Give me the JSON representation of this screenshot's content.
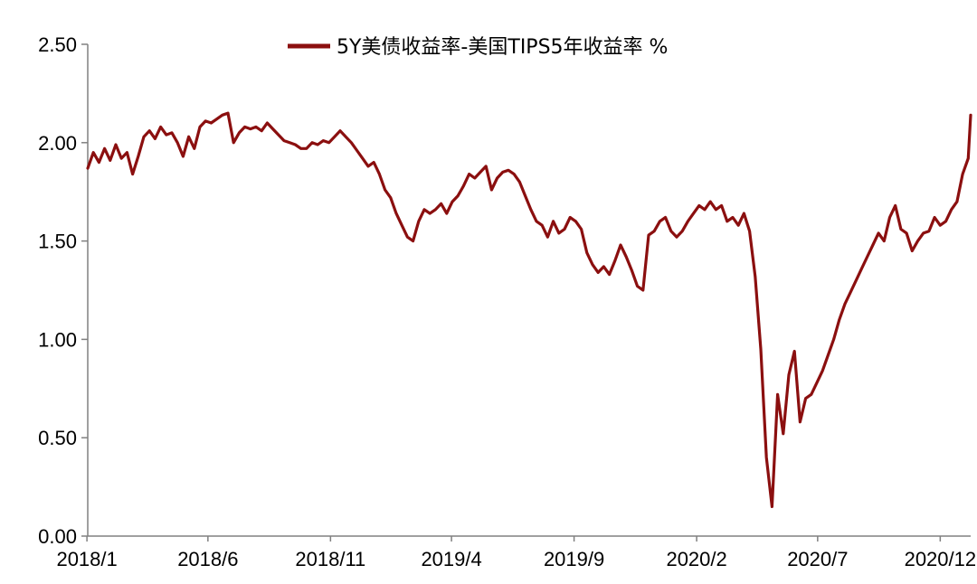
{
  "chart_data": {
    "type": "line",
    "title": "",
    "xlabel": "",
    "ylabel": "",
    "ylim": [
      0,
      2.5
    ],
    "y_ticks": [
      "0.00",
      "0.50",
      "1.00",
      "1.50",
      "2.00",
      "2.50"
    ],
    "x_range": [
      "2018-01-02",
      "2021-01-08"
    ],
    "x_ticks": [
      {
        "date": "2018-01-01",
        "label": "2018/1"
      },
      {
        "date": "2018-06-01",
        "label": "2018/6"
      },
      {
        "date": "2018-11-01",
        "label": "2018/11"
      },
      {
        "date": "2019-04-01",
        "label": "2019/4"
      },
      {
        "date": "2019-09-01",
        "label": "2019/9"
      },
      {
        "date": "2020-02-01",
        "label": "2020/2"
      },
      {
        "date": "2020-07-01",
        "label": "2020/7"
      },
      {
        "date": "2020-12-01",
        "label": "2020/12"
      }
    ],
    "grid": false,
    "legend_position": "top-center",
    "series": [
      {
        "name": "5Y美债收益率-美国TIPS5年收益率 %",
        "color": "#8B0F0F",
        "points": [
          [
            "2018-01-02",
            1.87
          ],
          [
            "2018-01-09",
            1.95
          ],
          [
            "2018-01-16",
            1.9
          ],
          [
            "2018-01-23",
            1.97
          ],
          [
            "2018-01-30",
            1.91
          ],
          [
            "2018-02-06",
            1.99
          ],
          [
            "2018-02-13",
            1.92
          ],
          [
            "2018-02-20",
            1.95
          ],
          [
            "2018-02-27",
            1.84
          ],
          [
            "2018-03-06",
            1.93
          ],
          [
            "2018-03-13",
            2.03
          ],
          [
            "2018-03-20",
            2.06
          ],
          [
            "2018-03-27",
            2.02
          ],
          [
            "2018-04-03",
            2.08
          ],
          [
            "2018-04-10",
            2.04
          ],
          [
            "2018-04-17",
            2.05
          ],
          [
            "2018-04-24",
            2.0
          ],
          [
            "2018-05-01",
            1.93
          ],
          [
            "2018-05-08",
            2.03
          ],
          [
            "2018-05-15",
            1.97
          ],
          [
            "2018-05-22",
            2.08
          ],
          [
            "2018-05-29",
            2.11
          ],
          [
            "2018-06-05",
            2.1
          ],
          [
            "2018-06-12",
            2.12
          ],
          [
            "2018-06-19",
            2.14
          ],
          [
            "2018-06-26",
            2.15
          ],
          [
            "2018-07-03",
            2.0
          ],
          [
            "2018-07-10",
            2.05
          ],
          [
            "2018-07-17",
            2.08
          ],
          [
            "2018-07-24",
            2.07
          ],
          [
            "2018-07-31",
            2.08
          ],
          [
            "2018-08-07",
            2.06
          ],
          [
            "2018-08-14",
            2.1
          ],
          [
            "2018-08-21",
            2.07
          ],
          [
            "2018-08-28",
            2.04
          ],
          [
            "2018-09-04",
            2.01
          ],
          [
            "2018-09-11",
            2.0
          ],
          [
            "2018-09-18",
            1.99
          ],
          [
            "2018-09-25",
            1.97
          ],
          [
            "2018-10-02",
            1.97
          ],
          [
            "2018-10-09",
            2.0
          ],
          [
            "2018-10-16",
            1.99
          ],
          [
            "2018-10-23",
            2.01
          ],
          [
            "2018-10-30",
            2.0
          ],
          [
            "2018-11-06",
            2.03
          ],
          [
            "2018-11-13",
            2.06
          ],
          [
            "2018-11-20",
            2.03
          ],
          [
            "2018-11-27",
            2.0
          ],
          [
            "2018-12-04",
            1.96
          ],
          [
            "2018-12-11",
            1.92
          ],
          [
            "2018-12-18",
            1.88
          ],
          [
            "2018-12-25",
            1.9
          ],
          [
            "2019-01-01",
            1.84
          ],
          [
            "2019-01-08",
            1.76
          ],
          [
            "2019-01-15",
            1.72
          ],
          [
            "2019-01-22",
            1.64
          ],
          [
            "2019-01-29",
            1.58
          ],
          [
            "2019-02-05",
            1.52
          ],
          [
            "2019-02-12",
            1.5
          ],
          [
            "2019-02-19",
            1.6
          ],
          [
            "2019-02-26",
            1.66
          ],
          [
            "2019-03-05",
            1.64
          ],
          [
            "2019-03-12",
            1.66
          ],
          [
            "2019-03-19",
            1.69
          ],
          [
            "2019-03-26",
            1.64
          ],
          [
            "2019-04-02",
            1.7
          ],
          [
            "2019-04-09",
            1.73
          ],
          [
            "2019-04-16",
            1.78
          ],
          [
            "2019-04-23",
            1.84
          ],
          [
            "2019-04-30",
            1.82
          ],
          [
            "2019-05-07",
            1.85
          ],
          [
            "2019-05-14",
            1.88
          ],
          [
            "2019-05-21",
            1.76
          ],
          [
            "2019-05-28",
            1.82
          ],
          [
            "2019-06-04",
            1.85
          ],
          [
            "2019-06-11",
            1.86
          ],
          [
            "2019-06-18",
            1.84
          ],
          [
            "2019-06-25",
            1.8
          ],
          [
            "2019-07-02",
            1.73
          ],
          [
            "2019-07-09",
            1.66
          ],
          [
            "2019-07-16",
            1.6
          ],
          [
            "2019-07-23",
            1.58
          ],
          [
            "2019-07-30",
            1.52
          ],
          [
            "2019-08-06",
            1.6
          ],
          [
            "2019-08-13",
            1.54
          ],
          [
            "2019-08-20",
            1.56
          ],
          [
            "2019-08-27",
            1.62
          ],
          [
            "2019-09-03",
            1.6
          ],
          [
            "2019-09-10",
            1.56
          ],
          [
            "2019-09-17",
            1.44
          ],
          [
            "2019-09-24",
            1.38
          ],
          [
            "2019-10-01",
            1.34
          ],
          [
            "2019-10-08",
            1.37
          ],
          [
            "2019-10-15",
            1.33
          ],
          [
            "2019-10-22",
            1.4
          ],
          [
            "2019-10-29",
            1.48
          ],
          [
            "2019-11-05",
            1.42
          ],
          [
            "2019-11-12",
            1.35
          ],
          [
            "2019-11-19",
            1.27
          ],
          [
            "2019-11-26",
            1.25
          ],
          [
            "2019-12-03",
            1.53
          ],
          [
            "2019-12-10",
            1.55
          ],
          [
            "2019-12-17",
            1.6
          ],
          [
            "2019-12-24",
            1.62
          ],
          [
            "2019-12-31",
            1.55
          ],
          [
            "2020-01-07",
            1.52
          ],
          [
            "2020-01-14",
            1.55
          ],
          [
            "2020-01-21",
            1.6
          ],
          [
            "2020-01-28",
            1.64
          ],
          [
            "2020-02-04",
            1.68
          ],
          [
            "2020-02-11",
            1.66
          ],
          [
            "2020-02-18",
            1.7
          ],
          [
            "2020-02-25",
            1.66
          ],
          [
            "2020-03-03",
            1.68
          ],
          [
            "2020-03-10",
            1.6
          ],
          [
            "2020-03-17",
            1.62
          ],
          [
            "2020-03-24",
            1.58
          ],
          [
            "2020-03-31",
            1.64
          ],
          [
            "2020-04-07",
            1.55
          ],
          [
            "2020-04-14",
            1.32
          ],
          [
            "2020-04-21",
            0.95
          ],
          [
            "2020-04-28",
            0.4
          ],
          [
            "2020-05-05",
            0.15
          ],
          [
            "2020-05-12",
            0.72
          ],
          [
            "2020-05-19",
            0.52
          ],
          [
            "2020-05-26",
            0.82
          ],
          [
            "2020-06-02",
            0.94
          ],
          [
            "2020-06-09",
            0.58
          ],
          [
            "2020-06-16",
            0.7
          ],
          [
            "2020-06-23",
            0.72
          ],
          [
            "2020-06-30",
            0.78
          ],
          [
            "2020-07-07",
            0.84
          ],
          [
            "2020-07-14",
            0.92
          ],
          [
            "2020-07-21",
            1.0
          ],
          [
            "2020-07-28",
            1.1
          ],
          [
            "2020-08-04",
            1.18
          ],
          [
            "2020-08-11",
            1.24
          ],
          [
            "2020-08-18",
            1.3
          ],
          [
            "2020-08-25",
            1.36
          ],
          [
            "2020-09-01",
            1.42
          ],
          [
            "2020-09-08",
            1.48
          ],
          [
            "2020-09-15",
            1.54
          ],
          [
            "2020-09-22",
            1.5
          ],
          [
            "2020-09-29",
            1.62
          ],
          [
            "2020-10-06",
            1.68
          ],
          [
            "2020-10-13",
            1.56
          ],
          [
            "2020-10-20",
            1.54
          ],
          [
            "2020-10-27",
            1.45
          ],
          [
            "2020-11-03",
            1.5
          ],
          [
            "2020-11-10",
            1.54
          ],
          [
            "2020-11-17",
            1.55
          ],
          [
            "2020-11-24",
            1.62
          ],
          [
            "2020-12-01",
            1.58
          ],
          [
            "2020-12-08",
            1.6
          ],
          [
            "2020-12-15",
            1.66
          ],
          [
            "2020-12-22",
            1.7
          ],
          [
            "2020-12-29",
            1.84
          ],
          [
            "2021-01-05",
            1.92
          ],
          [
            "2021-01-08",
            2.14
          ]
        ]
      }
    ]
  }
}
